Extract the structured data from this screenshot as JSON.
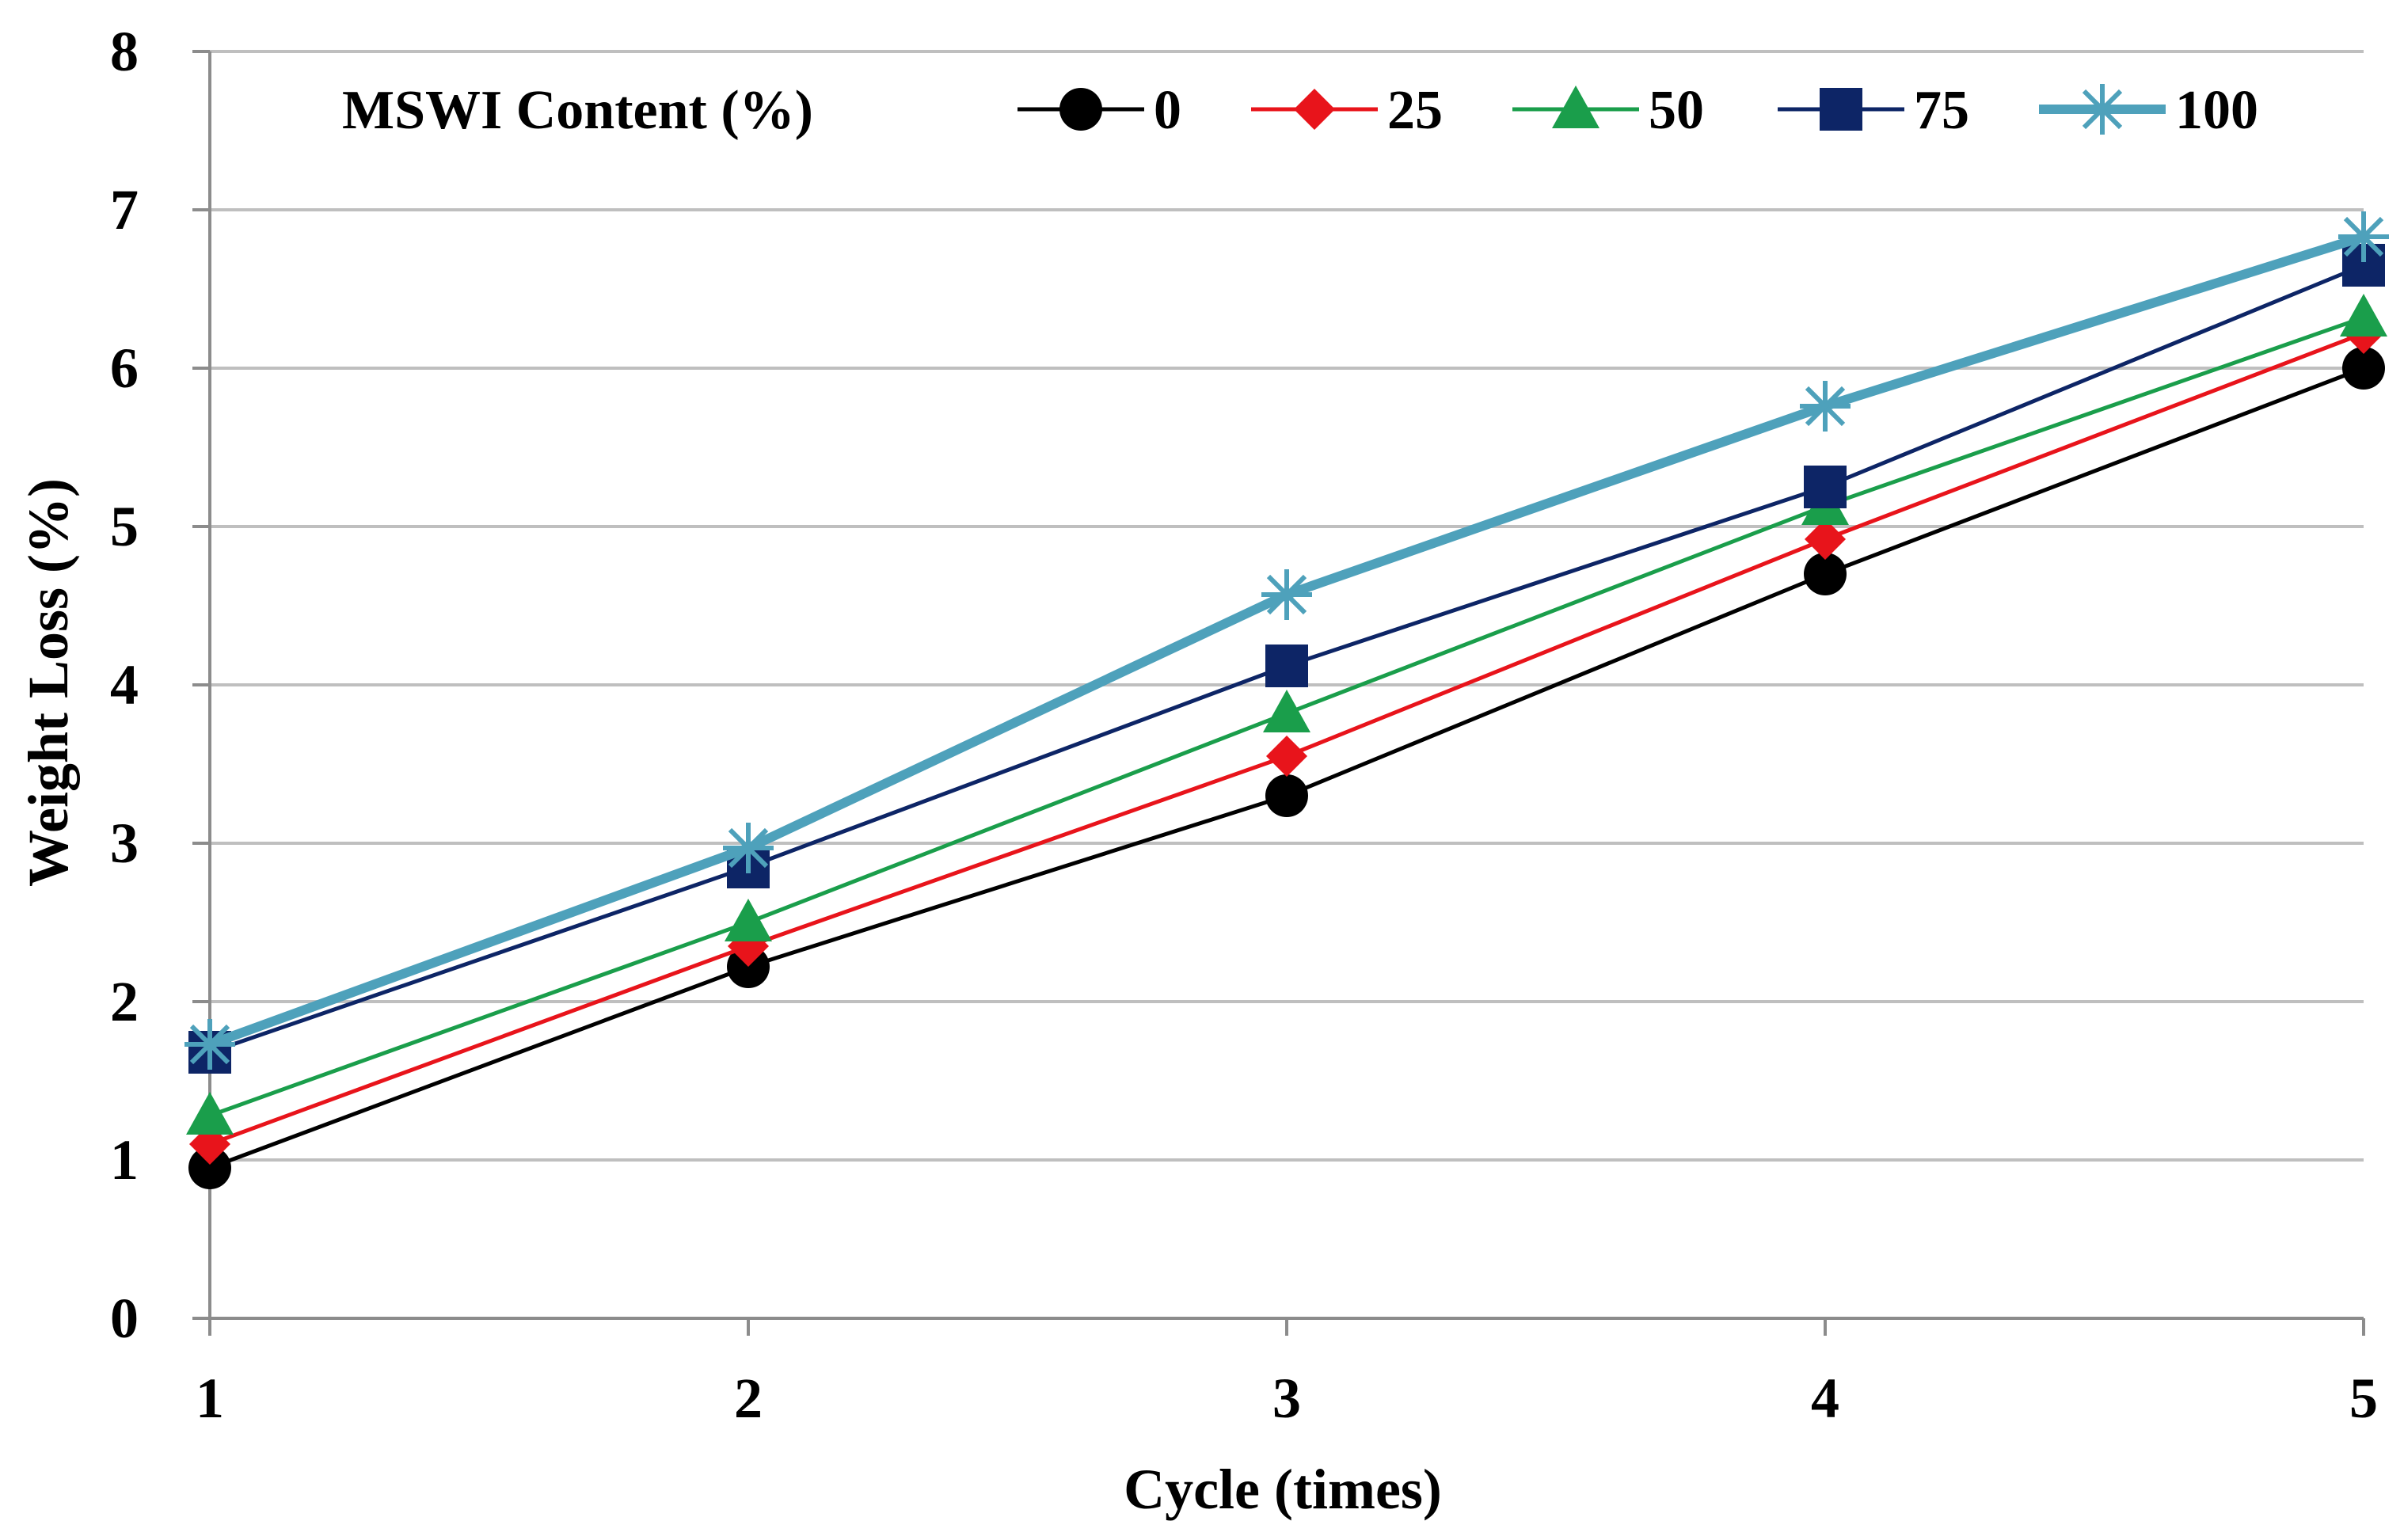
{
  "chart_data": {
    "type": "line",
    "title": "",
    "xlabel": "Cycle (times)",
    "ylabel": "Weight Loss (%)",
    "x": [
      1,
      2,
      3,
      4,
      5
    ],
    "x_tick_labels": [
      "1",
      "2",
      "3",
      "4",
      "5"
    ],
    "xlim": [
      1,
      5
    ],
    "ylim": [
      0,
      8
    ],
    "y_ticks": [
      0,
      1,
      2,
      3,
      4,
      5,
      6,
      7,
      8
    ],
    "y_tick_labels": [
      "0",
      "1",
      "2",
      "3",
      "4",
      "5",
      "6",
      "7",
      "8"
    ],
    "grid": true,
    "legend_title": "MSWI Content (%)",
    "legend_position": "top",
    "series": [
      {
        "name": "0",
        "values": [
          0.95,
          2.22,
          3.3,
          4.7,
          6.0
        ],
        "color": "#000000",
        "marker": "circle"
      },
      {
        "name": "25",
        "values": [
          1.1,
          2.35,
          3.55,
          4.92,
          6.22
        ],
        "color": "#e8141b",
        "marker": "diamond"
      },
      {
        "name": "50",
        "values": [
          1.28,
          2.5,
          3.82,
          5.13,
          6.32
        ],
        "color": "#1a9e4b",
        "marker": "triangle"
      },
      {
        "name": "75",
        "values": [
          1.68,
          2.85,
          4.12,
          5.25,
          6.65
        ],
        "color": "#0d2566",
        "marker": "square"
      },
      {
        "name": "100",
        "values": [
          1.73,
          2.97,
          4.57,
          5.76,
          6.83
        ],
        "color": "#4ea1bb",
        "marker": "star"
      }
    ]
  }
}
